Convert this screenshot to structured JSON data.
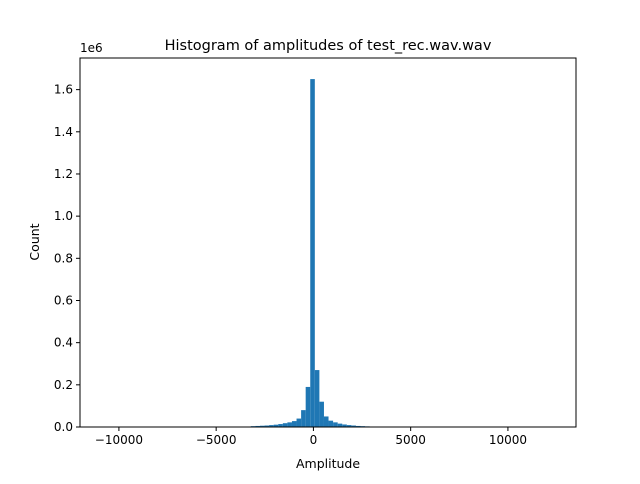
{
  "chart_data": {
    "type": "bar",
    "title": "Histogram of amplitudes of test_rec.wav.wav",
    "xlabel": "Amplitude",
    "ylabel": "Count",
    "y_offset_label": "1e6",
    "xlim": [
      -12000,
      13500
    ],
    "ylim": [
      0,
      1.75
    ],
    "xticks": [
      -10000,
      -5000,
      0,
      5000,
      10000
    ],
    "xtick_labels": [
      "−10000",
      "−5000",
      "0",
      "5000",
      "10000"
    ],
    "yticks": [
      0.0,
      0.2,
      0.4,
      0.6,
      0.8,
      1.0,
      1.2,
      1.4,
      1.6
    ],
    "ytick_labels": [
      "0.0",
      "0.2",
      "0.4",
      "0.6",
      "0.8",
      "1.0",
      "1.2",
      "1.4",
      "1.6"
    ],
    "bar_color": "#1f77b4",
    "series": [
      {
        "name": "Count (×1e6)",
        "bin_width": 235,
        "bins": [
          {
            "x": -3100,
            "value": 0.004
          },
          {
            "x": -2865,
            "value": 0.005
          },
          {
            "x": -2630,
            "value": 0.006
          },
          {
            "x": -2395,
            "value": 0.007
          },
          {
            "x": -2160,
            "value": 0.009
          },
          {
            "x": -1925,
            "value": 0.011
          },
          {
            "x": -1690,
            "value": 0.014
          },
          {
            "x": -1455,
            "value": 0.018
          },
          {
            "x": -1220,
            "value": 0.022
          },
          {
            "x": -985,
            "value": 0.028
          },
          {
            "x": -750,
            "value": 0.04
          },
          {
            "x": -515,
            "value": 0.08
          },
          {
            "x": -280,
            "value": 0.19
          },
          {
            "x": -45,
            "value": 1.65
          },
          {
            "x": 190,
            "value": 0.27
          },
          {
            "x": 425,
            "value": 0.12
          },
          {
            "x": 660,
            "value": 0.05
          },
          {
            "x": 895,
            "value": 0.03
          },
          {
            "x": 1130,
            "value": 0.022
          },
          {
            "x": 1365,
            "value": 0.016
          },
          {
            "x": 1600,
            "value": 0.012
          },
          {
            "x": 1835,
            "value": 0.009
          },
          {
            "x": 2070,
            "value": 0.007
          },
          {
            "x": 2305,
            "value": 0.005
          },
          {
            "x": 2540,
            "value": 0.004
          },
          {
            "x": 2775,
            "value": 0.003
          },
          {
            "x": 3010,
            "value": 0.002
          }
        ]
      }
    ]
  }
}
